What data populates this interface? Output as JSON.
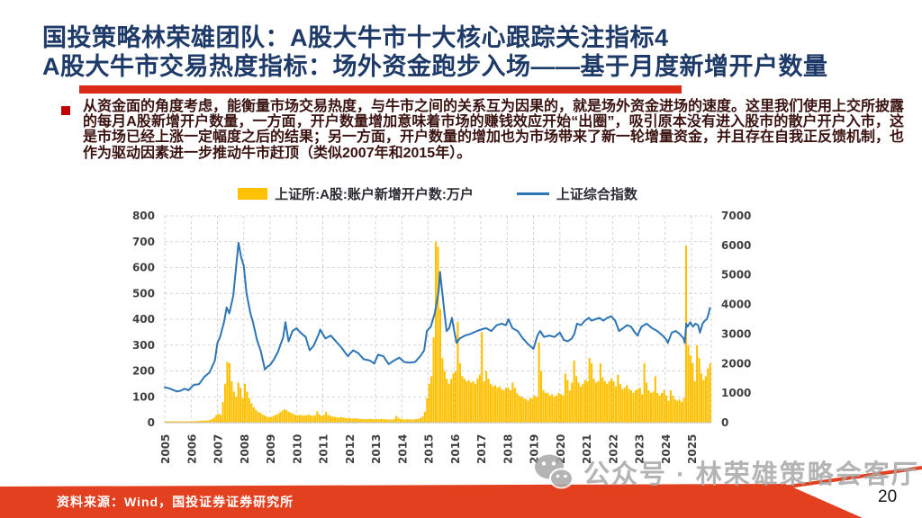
{
  "slide": {
    "title": {
      "line1": "国投策略林荣雄团队：A股大牛市十大核心跟踪关注指标4",
      "line2": "A股大牛市交易热度指标：场外资金跑步入场——基于月度新增开户数量"
    },
    "bullet_paragraph": "从资金面的角度考虑，能衡量市场交易热度，与牛市之间的关系互为因果的，就是场外资金进场的速度。这里我们使用上交所披露的每月A股新增开户数量，一方面，开户数量增加意味着市场的赚钱效应开始“出圈”，吸引原本没有进入股市的散户开户入市，这是市场已经上涨一定幅度之后的结果；另一方面，开户数量的增加也为市场带来了新一轮增量资金，并且存在自我正反馈机制，也作为驱动因素进一步推动牛市赶顶（类似2007年和2015年）。",
    "watermark": {
      "icon": "wechat",
      "label": "公众号 · 林荣雄策略会客厅"
    },
    "footer": {
      "source": "资料来源：Wind，国投证券证券研究所",
      "page_number": "20"
    }
  },
  "colors": {
    "title_navy": "#1E3A68",
    "accent_red": "#DB2A18",
    "footer_red": "#E2401F",
    "bullet_red": "#C00000",
    "body_maroon": "#3A1210",
    "bar_gold": "#FFC000",
    "line_blue": "#2E75B6",
    "axis_text": "#3F3F3F",
    "grid_gray": "#C8C8C8",
    "watermark_gray": "#A8A8A8"
  },
  "chart_data": {
    "type": "combo",
    "grid": "dashed",
    "legend_position": "top",
    "x_axis": {
      "labels": [
        "2005",
        "2006",
        "2007",
        "2008",
        "2009",
        "2010",
        "2011",
        "2012",
        "2013",
        "2014",
        "2015",
        "2016",
        "2017",
        "2018",
        "2019",
        "2020",
        "2021",
        "2022",
        "2023",
        "2024",
        "2025"
      ],
      "min": 2005,
      "max": 2025.75
    },
    "left_axis": {
      "min": 0,
      "max": 800,
      "step": 100,
      "ticks": [
        0,
        100,
        200,
        300,
        400,
        500,
        600,
        700,
        800
      ]
    },
    "right_axis": {
      "min": 0,
      "max": 7000,
      "step": 1000,
      "ticks": [
        0,
        1000,
        2000,
        3000,
        4000,
        5000,
        6000,
        7000
      ]
    },
    "series": [
      {
        "name": "上证所:A股:账户新增开户数:万户",
        "type": "bar",
        "axis": "left",
        "color": "#FFC000",
        "monthly_start": "2005-01",
        "values": [
          4,
          3,
          3,
          3,
          2,
          2,
          2,
          3,
          3,
          3,
          4,
          5,
          5,
          6,
          6,
          7,
          8,
          8,
          8,
          9,
          10,
          14,
          20,
          30,
          35,
          30,
          80,
          150,
          235,
          230,
          160,
          120,
          100,
          155,
          135,
          95,
          150,
          120,
          95,
          75,
          60,
          50,
          42,
          38,
          32,
          28,
          24,
          20,
          22,
          26,
          30,
          34,
          40,
          46,
          52,
          48,
          42,
          38,
          34,
          30,
          28,
          30,
          29,
          27,
          29,
          31,
          28,
          26,
          29,
          44,
          32,
          26,
          30,
          42,
          30,
          26,
          24,
          22,
          21,
          20,
          22,
          20,
          18,
          17,
          17,
          16,
          17,
          16,
          15,
          14,
          14,
          13,
          14,
          15,
          14,
          13,
          14,
          13,
          15,
          14,
          13,
          12,
          12,
          12,
          14,
          26,
          18,
          15,
          13,
          12,
          14,
          13,
          12,
          12,
          14,
          15,
          18,
          24,
          42,
          95,
          150,
          180,
          330,
          700,
          680,
          440,
          250,
          200,
          170,
          150,
          170,
          190,
          200,
          390,
          230,
          180,
          170,
          160,
          165,
          155,
          160,
          150,
          170,
          185,
          350,
          160,
          200,
          170,
          150,
          140,
          145,
          135,
          140,
          130,
          125,
          135,
          135,
          125,
          155,
          135,
          115,
          105,
          100,
          95,
          92,
          85,
          95,
          95,
          105,
          100,
          310,
          200,
          125,
          115,
          115,
          105,
          110,
          100,
          105,
          115,
          110,
          105,
          190,
          165,
          125,
          155,
          240,
          180,
          155,
          140,
          150,
          165,
          160,
          250,
          230,
          170,
          155,
          160,
          230,
          175,
          160,
          150,
          160,
          170,
          160,
          140,
          185,
          150,
          130,
          135,
          145,
          130,
          125,
          115,
          125,
          130,
          135,
          110,
          230,
          155,
          125,
          115,
          120,
          180,
          115,
          105,
          115,
          125,
          105,
          85,
          125,
          105,
          90,
          85,
          90,
          80,
          95,
          685,
          300,
          260,
          230,
          160,
          300,
          250,
          190,
          165,
          180,
          210,
          230
        ]
      },
      {
        "name": "上证综合指数",
        "type": "line",
        "axis": "right",
        "color": "#2E75B6",
        "points": [
          [
            2005.0,
            1200
          ],
          [
            2005.2,
            1150
          ],
          [
            2005.45,
            1060
          ],
          [
            2005.6,
            1080
          ],
          [
            2005.75,
            1150
          ],
          [
            2005.9,
            1100
          ],
          [
            2006.1,
            1280
          ],
          [
            2006.3,
            1300
          ],
          [
            2006.5,
            1550
          ],
          [
            2006.7,
            1700
          ],
          [
            2006.9,
            2100
          ],
          [
            2007.0,
            2700
          ],
          [
            2007.1,
            2900
          ],
          [
            2007.25,
            3400
          ],
          [
            2007.35,
            3900
          ],
          [
            2007.45,
            3700
          ],
          [
            2007.6,
            4300
          ],
          [
            2007.7,
            5200
          ],
          [
            2007.8,
            6090
          ],
          [
            2007.9,
            5600
          ],
          [
            2008.0,
            5300
          ],
          [
            2008.1,
            4400
          ],
          [
            2008.25,
            3700
          ],
          [
            2008.35,
            3400
          ],
          [
            2008.5,
            2800
          ],
          [
            2008.65,
            2400
          ],
          [
            2008.8,
            1800
          ],
          [
            2008.9,
            1900
          ],
          [
            2009.0,
            1950
          ],
          [
            2009.15,
            2150
          ],
          [
            2009.3,
            2400
          ],
          [
            2009.5,
            2900
          ],
          [
            2009.58,
            3400
          ],
          [
            2009.7,
            2750
          ],
          [
            2009.85,
            3100
          ],
          [
            2010.0,
            3200
          ],
          [
            2010.15,
            3050
          ],
          [
            2010.35,
            2900
          ],
          [
            2010.5,
            2450
          ],
          [
            2010.65,
            2600
          ],
          [
            2010.85,
            3000
          ],
          [
            2010.9,
            3150
          ],
          [
            2011.1,
            2850
          ],
          [
            2011.3,
            2950
          ],
          [
            2011.5,
            2750
          ],
          [
            2011.7,
            2550
          ],
          [
            2011.95,
            2250
          ],
          [
            2012.15,
            2450
          ],
          [
            2012.35,
            2350
          ],
          [
            2012.55,
            2150
          ],
          [
            2012.8,
            2100
          ],
          [
            2012.95,
            2000
          ],
          [
            2013.1,
            2300
          ],
          [
            2013.3,
            2250
          ],
          [
            2013.5,
            1980
          ],
          [
            2013.7,
            2100
          ],
          [
            2013.9,
            2200
          ],
          [
            2014.1,
            2050
          ],
          [
            2014.3,
            2030
          ],
          [
            2014.5,
            2050
          ],
          [
            2014.7,
            2250
          ],
          [
            2014.85,
            2450
          ],
          [
            2014.95,
            3100
          ],
          [
            2015.1,
            3250
          ],
          [
            2015.25,
            3700
          ],
          [
            2015.4,
            4450
          ],
          [
            2015.45,
            5100
          ],
          [
            2015.55,
            4300
          ],
          [
            2015.62,
            3700
          ],
          [
            2015.7,
            3100
          ],
          [
            2015.8,
            3200
          ],
          [
            2015.9,
            3550
          ],
          [
            2016.0,
            3050
          ],
          [
            2016.08,
            2700
          ],
          [
            2016.2,
            2850
          ],
          [
            2016.4,
            2950
          ],
          [
            2016.6,
            3000
          ],
          [
            2016.85,
            3100
          ],
          [
            2017.0,
            3150
          ],
          [
            2017.2,
            3200
          ],
          [
            2017.4,
            3100
          ],
          [
            2017.6,
            3300
          ],
          [
            2017.8,
            3350
          ],
          [
            2017.95,
            3300
          ],
          [
            2018.05,
            3500
          ],
          [
            2018.2,
            3200
          ],
          [
            2018.4,
            3100
          ],
          [
            2018.6,
            2850
          ],
          [
            2018.8,
            2650
          ],
          [
            2019.0,
            2500
          ],
          [
            2019.15,
            2950
          ],
          [
            2019.25,
            3100
          ],
          [
            2019.4,
            2900
          ],
          [
            2019.6,
            2950
          ],
          [
            2019.8,
            2900
          ],
          [
            2020.0,
            3050
          ],
          [
            2020.15,
            2800
          ],
          [
            2020.3,
            2750
          ],
          [
            2020.45,
            2850
          ],
          [
            2020.55,
            3000
          ],
          [
            2020.65,
            3350
          ],
          [
            2020.8,
            3300
          ],
          [
            2020.95,
            3450
          ],
          [
            2021.1,
            3550
          ],
          [
            2021.2,
            3450
          ],
          [
            2021.35,
            3500
          ],
          [
            2021.5,
            3550
          ],
          [
            2021.65,
            3450
          ],
          [
            2021.8,
            3550
          ],
          [
            2021.95,
            3600
          ],
          [
            2022.1,
            3450
          ],
          [
            2022.25,
            3100
          ],
          [
            2022.4,
            3200
          ],
          [
            2022.55,
            3300
          ],
          [
            2022.7,
            3250
          ],
          [
            2022.85,
            3050
          ],
          [
            2022.95,
            2950
          ],
          [
            2023.1,
            3250
          ],
          [
            2023.3,
            3350
          ],
          [
            2023.5,
            3200
          ],
          [
            2023.7,
            3100
          ],
          [
            2023.9,
            2950
          ],
          [
            2024.05,
            2800
          ],
          [
            2024.1,
            2700
          ],
          [
            2024.25,
            3050
          ],
          [
            2024.4,
            3100
          ],
          [
            2024.55,
            3000
          ],
          [
            2024.7,
            2850
          ],
          [
            2024.74,
            2700
          ],
          [
            2024.8,
            3350
          ],
          [
            2024.85,
            3250
          ],
          [
            2024.95,
            3400
          ],
          [
            2025.05,
            3250
          ],
          [
            2025.15,
            3350
          ],
          [
            2025.25,
            3300
          ],
          [
            2025.32,
            3050
          ],
          [
            2025.42,
            3350
          ],
          [
            2025.5,
            3450
          ],
          [
            2025.58,
            3500
          ],
          [
            2025.65,
            3700
          ],
          [
            2025.7,
            3880
          ]
        ]
      }
    ]
  }
}
